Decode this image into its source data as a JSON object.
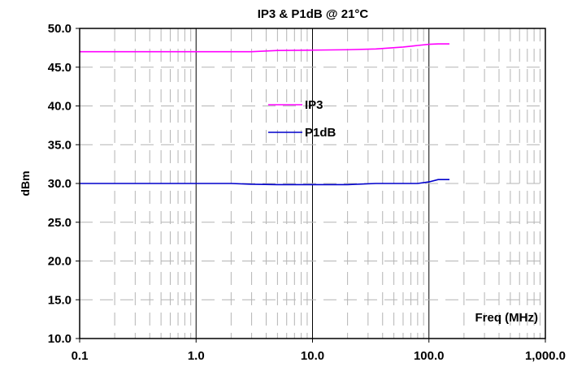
{
  "chart_data": {
    "type": "line",
    "title": "IP3 & P1dB @ 21°C",
    "xlabel": "Freq (MHz)",
    "ylabel": "dBm",
    "x_scale": "log",
    "xlim": [
      0.1,
      1000
    ],
    "ylim": [
      10,
      50
    ],
    "x_ticks": [
      0.1,
      1,
      10,
      100,
      1000
    ],
    "x_tick_labels": [
      "0.1",
      "1.0",
      "10.0",
      "100.0",
      "1,000.0"
    ],
    "y_ticks": [
      10,
      15,
      20,
      25,
      30,
      35,
      40,
      45,
      50
    ],
    "y_tick_labels": [
      "10.0",
      "15.0",
      "20.0",
      "25.0",
      "30.0",
      "35.0",
      "40.0",
      "45.0",
      "50.0"
    ],
    "grid": "major and minor (log) gridlines",
    "legend_position": "center-upper",
    "series": [
      {
        "name": "IP3",
        "color": "#ff00ff",
        "x": [
          0.1,
          1,
          3,
          5,
          10,
          20,
          35,
          60,
          80,
          100,
          120,
          150
        ],
        "y": [
          47.0,
          47.0,
          47.0,
          47.15,
          47.2,
          47.25,
          47.35,
          47.6,
          47.8,
          47.95,
          48.0,
          48.0
        ]
      },
      {
        "name": "P1dB",
        "color": "#0000cc",
        "x": [
          0.1,
          1,
          2,
          3,
          5,
          10,
          20,
          35,
          50,
          80,
          100,
          120,
          150
        ],
        "y": [
          30.0,
          30.0,
          30.0,
          29.9,
          29.85,
          29.85,
          29.85,
          30.0,
          30.0,
          30.0,
          30.2,
          30.5,
          30.5
        ]
      }
    ]
  }
}
